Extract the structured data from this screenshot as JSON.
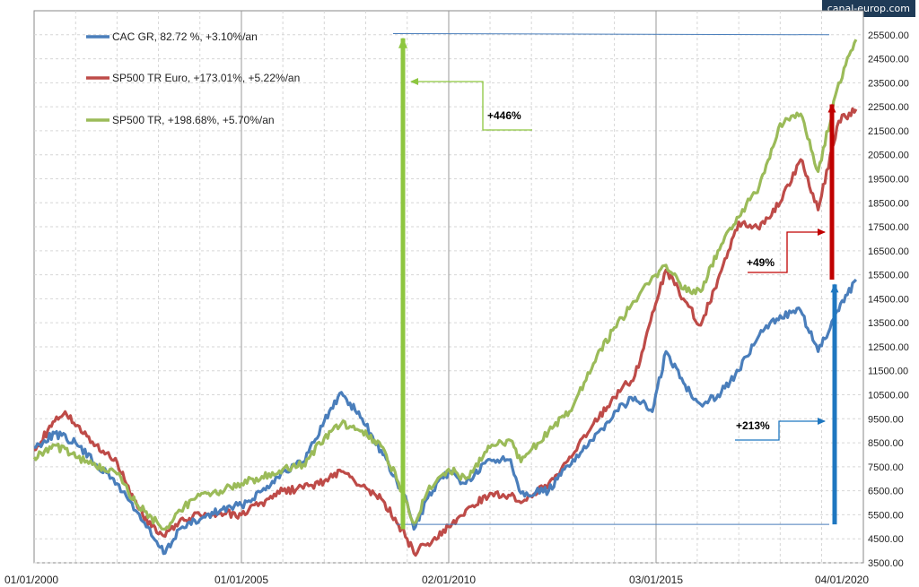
{
  "brand": {
    "label": "canal-europ.com"
  },
  "chart_data": {
    "type": "line",
    "x_ticks": [
      "01/01/2000",
      "01/01/2005",
      "02/01/2010",
      "03/01/2015",
      "04/01/2020"
    ],
    "xlim": [
      "2000-01-01",
      "2020-01-04"
    ],
    "ylim": [
      3500,
      26500
    ],
    "y_ticks": [
      "3500.00",
      "4500.00",
      "5500.00",
      "6500.00",
      "7500.00",
      "8500.00",
      "9500.00",
      "10500.00",
      "11500.00",
      "12500.00",
      "13500.00",
      "14500.00",
      "15500.00",
      "16500.00",
      "17500.00",
      "18500.00",
      "19500.00",
      "20500.00",
      "21500.00",
      "22500.00",
      "23500.00",
      "24500.00",
      "25500.00"
    ],
    "grid": true,
    "legend_position": "top-left",
    "series": [
      {
        "name": "CAC GR, 82.72 %,  +3.10%/an",
        "color": "#4a7ebb",
        "points": [
          [
            "2000-01-01",
            8300
          ],
          [
            "2000-07-01",
            8900
          ],
          [
            "2001-01-01",
            8500
          ],
          [
            "2001-07-01",
            7600
          ],
          [
            "2002-01-01",
            6800
          ],
          [
            "2002-07-01",
            5600
          ],
          [
            "2003-01-01",
            4200
          ],
          [
            "2003-03-01",
            3900
          ],
          [
            "2003-07-01",
            4900
          ],
          [
            "2004-01-01",
            5300
          ],
          [
            "2004-07-01",
            5700
          ],
          [
            "2005-01-01",
            5900
          ],
          [
            "2005-07-01",
            6500
          ],
          [
            "2006-01-01",
            7300
          ],
          [
            "2006-07-01",
            7700
          ],
          [
            "2007-01-01",
            9400
          ],
          [
            "2007-06-01",
            10600
          ],
          [
            "2007-12-01",
            9500
          ],
          [
            "2008-06-01",
            8000
          ],
          [
            "2009-01-01",
            6000
          ],
          [
            "2009-03-01",
            4900
          ],
          [
            "2009-07-01",
            6200
          ],
          [
            "2010-01-01",
            7300
          ],
          [
            "2010-06-01",
            6800
          ],
          [
            "2011-01-01",
            7800
          ],
          [
            "2011-07-01",
            7800
          ],
          [
            "2011-10-01",
            6400
          ],
          [
            "2012-06-01",
            6500
          ],
          [
            "2013-01-01",
            7800
          ],
          [
            "2013-07-01",
            8600
          ],
          [
            "2014-01-01",
            9800
          ],
          [
            "2014-07-01",
            10400
          ],
          [
            "2014-12-01",
            9800
          ],
          [
            "2015-04-01",
            12300
          ],
          [
            "2015-09-01",
            11000
          ],
          [
            "2016-02-01",
            10100
          ],
          [
            "2016-07-01",
            10500
          ],
          [
            "2017-01-01",
            11500
          ],
          [
            "2017-07-01",
            13000
          ],
          [
            "2018-01-01",
            13800
          ],
          [
            "2018-07-01",
            14000
          ],
          [
            "2018-12-01",
            12300
          ],
          [
            "2019-06-01",
            14000
          ],
          [
            "2019-11-01",
            15300
          ]
        ]
      },
      {
        "name": "SP500 TR Euro, +173.01%,  +5.22%/an",
        "color": "#be4b48",
        "points": [
          [
            "2000-01-01",
            8200
          ],
          [
            "2000-07-01",
            9400
          ],
          [
            "2000-10-01",
            9800
          ],
          [
            "2001-01-01",
            9200
          ],
          [
            "2001-07-01",
            8400
          ],
          [
            "2002-01-01",
            7700
          ],
          [
            "2002-07-01",
            5800
          ],
          [
            "2003-01-01",
            4700
          ],
          [
            "2003-03-01",
            4600
          ],
          [
            "2003-07-01",
            5200
          ],
          [
            "2004-01-01",
            5500
          ],
          [
            "2004-07-01",
            5600
          ],
          [
            "2005-01-01",
            5500
          ],
          [
            "2005-07-01",
            6000
          ],
          [
            "2006-01-01",
            6500
          ],
          [
            "2006-07-01",
            6600
          ],
          [
            "2007-01-01",
            6900
          ],
          [
            "2007-06-01",
            7300
          ],
          [
            "2007-12-01",
            6700
          ],
          [
            "2008-06-01",
            6100
          ],
          [
            "2009-01-01",
            4500
          ],
          [
            "2009-03-01",
            3900
          ],
          [
            "2009-07-01",
            4300
          ],
          [
            "2010-01-01",
            5000
          ],
          [
            "2010-06-01",
            5700
          ],
          [
            "2011-01-01",
            6400
          ],
          [
            "2011-07-01",
            6300
          ],
          [
            "2011-10-01",
            6000
          ],
          [
            "2012-06-01",
            6800
          ],
          [
            "2013-01-01",
            8000
          ],
          [
            "2013-07-01",
            9300
          ],
          [
            "2014-01-01",
            10400
          ],
          [
            "2014-07-01",
            11300
          ],
          [
            "2015-01-01",
            14300
          ],
          [
            "2015-04-01",
            15700
          ],
          [
            "2015-09-01",
            14500
          ],
          [
            "2016-02-01",
            13400
          ],
          [
            "2016-07-01",
            15300
          ],
          [
            "2017-01-01",
            17700
          ],
          [
            "2017-07-01",
            17400
          ],
          [
            "2018-01-01",
            18500
          ],
          [
            "2018-07-01",
            20300
          ],
          [
            "2018-12-01",
            18200
          ],
          [
            "2019-06-01",
            21900
          ],
          [
            "2019-11-01",
            22400
          ]
        ]
      },
      {
        "name": "SP500 TR,  +198.68%, +5.70%/an",
        "color": "#9bbb59",
        "points": [
          [
            "2000-01-01",
            7900
          ],
          [
            "2000-07-01",
            8400
          ],
          [
            "2001-01-01",
            7900
          ],
          [
            "2001-07-01",
            7500
          ],
          [
            "2002-01-01",
            7200
          ],
          [
            "2002-07-01",
            5900
          ],
          [
            "2003-01-01",
            5100
          ],
          [
            "2003-03-01",
            4900
          ],
          [
            "2003-07-01",
            5700
          ],
          [
            "2004-01-01",
            6300
          ],
          [
            "2004-07-01",
            6500
          ],
          [
            "2005-01-01",
            6800
          ],
          [
            "2005-07-01",
            7100
          ],
          [
            "2006-01-01",
            7400
          ],
          [
            "2006-07-01",
            7600
          ],
          [
            "2007-01-01",
            8700
          ],
          [
            "2007-06-01",
            9300
          ],
          [
            "2007-12-01",
            9000
          ],
          [
            "2008-06-01",
            8300
          ],
          [
            "2009-01-01",
            6000
          ],
          [
            "2009-03-01",
            5100
          ],
          [
            "2009-07-01",
            6500
          ],
          [
            "2010-01-01",
            7400
          ],
          [
            "2010-06-01",
            7000
          ],
          [
            "2011-01-01",
            8300
          ],
          [
            "2011-07-01",
            8600
          ],
          [
            "2011-10-01",
            7700
          ],
          [
            "2012-06-01",
            9000
          ],
          [
            "2013-01-01",
            10000
          ],
          [
            "2013-07-01",
            11800
          ],
          [
            "2014-01-01",
            13300
          ],
          [
            "2014-07-01",
            14400
          ],
          [
            "2015-01-01",
            15500
          ],
          [
            "2015-04-01",
            15900
          ],
          [
            "2015-09-01",
            14900
          ],
          [
            "2016-02-01",
            14800
          ],
          [
            "2016-07-01",
            16500
          ],
          [
            "2017-01-01",
            17900
          ],
          [
            "2017-07-01",
            19200
          ],
          [
            "2018-01-01",
            21800
          ],
          [
            "2018-07-01",
            22200
          ],
          [
            "2018-12-01",
            19800
          ],
          [
            "2019-06-01",
            23500
          ],
          [
            "2019-11-01",
            25300
          ]
        ]
      }
    ],
    "annotations": [
      {
        "label": "+446%",
        "color": "#8dc63f"
      },
      {
        "label": "+49%",
        "color": "#c00000"
      },
      {
        "label": "+213%",
        "color": "#1f77c0"
      }
    ]
  }
}
